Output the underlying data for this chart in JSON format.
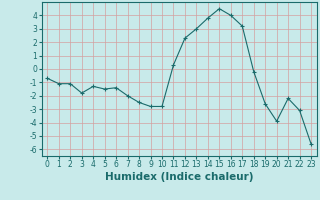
{
  "x": [
    0,
    1,
    2,
    3,
    4,
    5,
    6,
    7,
    8,
    9,
    10,
    11,
    12,
    13,
    14,
    15,
    16,
    17,
    18,
    19,
    20,
    21,
    22,
    23
  ],
  "y": [
    -0.7,
    -1.1,
    -1.1,
    -1.8,
    -1.3,
    -1.5,
    -1.4,
    -2.0,
    -2.5,
    -2.8,
    -2.8,
    0.3,
    2.3,
    3.0,
    3.8,
    4.5,
    4.0,
    3.2,
    -0.2,
    -2.6,
    -3.9,
    -2.2,
    -3.1,
    -5.6
  ],
  "xlabel": "Humidex (Indice chaleur)",
  "ylim": [
    -6.5,
    5.0
  ],
  "xlim": [
    -0.5,
    23.5
  ],
  "yticks": [
    -6,
    -5,
    -4,
    -3,
    -2,
    -1,
    0,
    1,
    2,
    3,
    4
  ],
  "xticks": [
    0,
    1,
    2,
    3,
    4,
    5,
    6,
    7,
    8,
    9,
    10,
    11,
    12,
    13,
    14,
    15,
    16,
    17,
    18,
    19,
    20,
    21,
    22,
    23
  ],
  "line_color": "#1a6b6b",
  "marker": "+",
  "background_color": "#c8eaea",
  "grid_color": "#d4a0a0",
  "tick_label_fontsize": 5.5,
  "xlabel_fontsize": 7.5
}
